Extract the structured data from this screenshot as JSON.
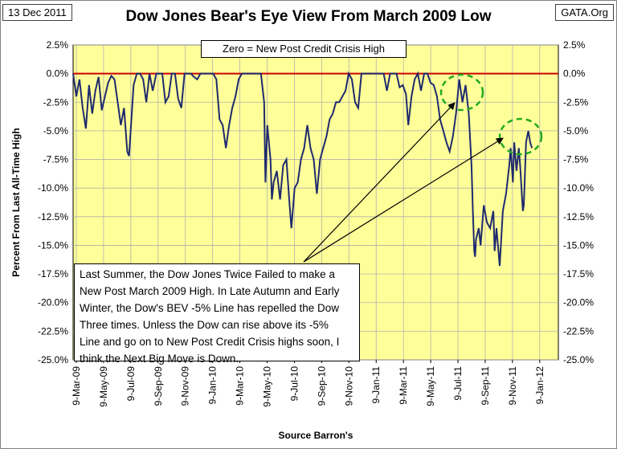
{
  "header": {
    "date": "13 Dec 2011",
    "source_badge": "GATA.Org",
    "title": "Dow Jones Bear's Eye View From March 2009 Low"
  },
  "chart_data": {
    "type": "line",
    "title": "Dow Jones Bear's Eye View From March 2009 Low",
    "xlabel": "Source Barron's",
    "ylabel": "Percent From Last All-Time High",
    "ylim": [
      -25.0,
      2.5
    ],
    "y_ticks": [
      "2.5%",
      "0.0%",
      "-2.5%",
      "-5.0%",
      "-7.5%",
      "-10.0%",
      "-12.5%",
      "-15.0%",
      "-17.5%",
      "-20.0%",
      "-22.5%",
      "-25.0%"
    ],
    "x_tick_labels": [
      "9-Mar-09",
      "9-May-09",
      "9-Jul-09",
      "9-Sep-09",
      "9-Nov-09",
      "9-Jan-10",
      "9-Mar-10",
      "9-May-10",
      "9-Jul-10",
      "9-Sep-10",
      "9-Nov-10",
      "9-Jan-11",
      "9-Mar-11",
      "9-May-11",
      "9-Jul-11",
      "9-Sep-11",
      "9-Nov-11",
      "9-Jan-12"
    ],
    "series": [
      {
        "color": "#1f2a6e",
        "points": [
          [
            "2009-03-09",
            0.0
          ],
          [
            "2009-03-16",
            -2.0
          ],
          [
            "2009-03-23",
            -0.5
          ],
          [
            "2009-03-30",
            -3.0
          ],
          [
            "2009-04-06",
            -4.8
          ],
          [
            "2009-04-13",
            -1.0
          ],
          [
            "2009-04-20",
            -3.5
          ],
          [
            "2009-04-27",
            -1.5
          ],
          [
            "2009-05-04",
            -0.3
          ],
          [
            "2009-05-11",
            -3.2
          ],
          [
            "2009-05-18",
            -2.0
          ],
          [
            "2009-05-25",
            -0.8
          ],
          [
            "2009-06-01",
            -0.2
          ],
          [
            "2009-06-08",
            -0.5
          ],
          [
            "2009-06-15",
            -2.5
          ],
          [
            "2009-06-22",
            -4.5
          ],
          [
            "2009-06-29",
            -3.0
          ],
          [
            "2009-07-06",
            -6.8
          ],
          [
            "2009-07-10",
            -7.2
          ],
          [
            "2009-07-20",
            -1.0
          ],
          [
            "2009-07-27",
            0.0
          ],
          [
            "2009-08-03",
            0.0
          ],
          [
            "2009-08-10",
            -0.5
          ],
          [
            "2009-08-17",
            -2.5
          ],
          [
            "2009-08-24",
            0.0
          ],
          [
            "2009-08-31",
            -1.5
          ],
          [
            "2009-09-08",
            0.0
          ],
          [
            "2009-09-14",
            0.0
          ],
          [
            "2009-09-21",
            0.0
          ],
          [
            "2009-09-28",
            -2.5
          ],
          [
            "2009-10-05",
            -2.0
          ],
          [
            "2009-10-12",
            0.0
          ],
          [
            "2009-10-19",
            0.0
          ],
          [
            "2009-10-26",
            -2.2
          ],
          [
            "2009-11-02",
            -3.0
          ],
          [
            "2009-11-09",
            0.0
          ],
          [
            "2009-11-16",
            0.0
          ],
          [
            "2009-11-23",
            0.0
          ],
          [
            "2009-11-30",
            -0.3
          ],
          [
            "2009-12-07",
            -0.5
          ],
          [
            "2009-12-14",
            0.0
          ],
          [
            "2009-12-21",
            0.0
          ],
          [
            "2009-12-28",
            0.0
          ],
          [
            "2010-01-04",
            0.0
          ],
          [
            "2010-01-11",
            0.0
          ],
          [
            "2010-01-18",
            -0.5
          ],
          [
            "2010-01-25",
            -4.0
          ],
          [
            "2010-02-01",
            -4.5
          ],
          [
            "2010-02-08",
            -6.5
          ],
          [
            "2010-02-15",
            -4.5
          ],
          [
            "2010-02-22",
            -3.0
          ],
          [
            "2010-03-01",
            -2.0
          ],
          [
            "2010-03-08",
            -0.5
          ],
          [
            "2010-03-15",
            0.0
          ],
          [
            "2010-03-22",
            0.0
          ],
          [
            "2010-03-29",
            0.0
          ],
          [
            "2010-04-05",
            0.0
          ],
          [
            "2010-04-12",
            0.0
          ],
          [
            "2010-04-19",
            0.0
          ],
          [
            "2010-04-26",
            0.0
          ],
          [
            "2010-05-03",
            -2.5
          ],
          [
            "2010-05-06",
            -9.5
          ],
          [
            "2010-05-10",
            -4.5
          ],
          [
            "2010-05-17",
            -7.5
          ],
          [
            "2010-05-20",
            -11.0
          ],
          [
            "2010-05-24",
            -9.5
          ],
          [
            "2010-05-31",
            -8.5
          ],
          [
            "2010-06-07",
            -11.0
          ],
          [
            "2010-06-14",
            -8.0
          ],
          [
            "2010-06-21",
            -7.5
          ],
          [
            "2010-06-28",
            -11.5
          ],
          [
            "2010-07-02",
            -13.5
          ],
          [
            "2010-07-09",
            -10.0
          ],
          [
            "2010-07-16",
            -9.5
          ],
          [
            "2010-07-23",
            -7.5
          ],
          [
            "2010-07-30",
            -6.5
          ],
          [
            "2010-08-06",
            -4.5
          ],
          [
            "2010-08-13",
            -6.5
          ],
          [
            "2010-08-20",
            -7.5
          ],
          [
            "2010-08-27",
            -10.5
          ],
          [
            "2010-09-03",
            -7.5
          ],
          [
            "2010-09-10",
            -6.5
          ],
          [
            "2010-09-17",
            -5.5
          ],
          [
            "2010-09-24",
            -4.0
          ],
          [
            "2010-10-01",
            -3.5
          ],
          [
            "2010-10-08",
            -2.5
          ],
          [
            "2010-10-15",
            -2.5
          ],
          [
            "2010-10-22",
            -2.0
          ],
          [
            "2010-10-29",
            -1.5
          ],
          [
            "2010-11-05",
            0.0
          ],
          [
            "2010-11-12",
            -0.5
          ],
          [
            "2010-11-19",
            -2.5
          ],
          [
            "2010-11-26",
            -3.0
          ],
          [
            "2010-12-03",
            0.0
          ],
          [
            "2010-12-10",
            0.0
          ],
          [
            "2010-12-17",
            0.0
          ],
          [
            "2010-12-24",
            0.0
          ],
          [
            "2010-12-31",
            0.0
          ],
          [
            "2011-01-07",
            0.0
          ],
          [
            "2011-01-14",
            0.0
          ],
          [
            "2011-01-21",
            0.0
          ],
          [
            "2011-01-28",
            -1.5
          ],
          [
            "2011-02-04",
            0.0
          ],
          [
            "2011-02-11",
            0.0
          ],
          [
            "2011-02-18",
            0.0
          ],
          [
            "2011-02-25",
            -1.2
          ],
          [
            "2011-03-04",
            -1.0
          ],
          [
            "2011-03-11",
            -1.8
          ],
          [
            "2011-03-16",
            -4.5
          ],
          [
            "2011-03-23",
            -2.0
          ],
          [
            "2011-03-30",
            -0.5
          ],
          [
            "2011-04-06",
            0.0
          ],
          [
            "2011-04-13",
            -1.5
          ],
          [
            "2011-04-20",
            0.0
          ],
          [
            "2011-04-27",
            0.0
          ],
          [
            "2011-05-04",
            -0.8
          ],
          [
            "2011-05-11",
            -1.0
          ],
          [
            "2011-05-18",
            -2.0
          ],
          [
            "2011-05-25",
            -4.0
          ],
          [
            "2011-06-01",
            -5.0
          ],
          [
            "2011-06-08",
            -6.0
          ],
          [
            "2011-06-15",
            -6.8
          ],
          [
            "2011-06-22",
            -5.5
          ],
          [
            "2011-06-29",
            -3.5
          ],
          [
            "2011-07-06",
            -0.5
          ],
          [
            "2011-07-13",
            -2.5
          ],
          [
            "2011-07-20",
            -1.0
          ],
          [
            "2011-07-27",
            -3.5
          ],
          [
            "2011-08-02",
            -8.0
          ],
          [
            "2011-08-05",
            -12.0
          ],
          [
            "2011-08-08",
            -15.5
          ],
          [
            "2011-08-10",
            -16.0
          ],
          [
            "2011-08-12",
            -14.5
          ],
          [
            "2011-08-18",
            -13.5
          ],
          [
            "2011-08-22",
            -15.0
          ],
          [
            "2011-08-29",
            -11.5
          ],
          [
            "2011-09-05",
            -13.0
          ],
          [
            "2011-09-12",
            -13.5
          ],
          [
            "2011-09-19",
            -12.0
          ],
          [
            "2011-09-22",
            -15.5
          ],
          [
            "2011-09-26",
            -13.5
          ],
          [
            "2011-10-03",
            -16.8
          ],
          [
            "2011-10-10",
            -12.0
          ],
          [
            "2011-10-17",
            -10.5
          ],
          [
            "2011-10-24",
            -8.0
          ],
          [
            "2011-10-27",
            -6.5
          ],
          [
            "2011-11-01",
            -9.5
          ],
          [
            "2011-11-04",
            -6.0
          ],
          [
            "2011-11-09",
            -8.5
          ],
          [
            "2011-11-14",
            -6.5
          ],
          [
            "2011-11-17",
            -8.0
          ],
          [
            "2011-11-23",
            -12.0
          ],
          [
            "2011-11-25",
            -11.5
          ],
          [
            "2011-11-30",
            -6.0
          ],
          [
            "2011-12-05",
            -5.0
          ],
          [
            "2011-12-09",
            -6.0
          ],
          [
            "2011-12-13",
            -6.5
          ]
        ]
      }
    ],
    "reference_line": {
      "value": 0.0,
      "color": "#cc0000"
    },
    "plot_background": "#ffff99",
    "grid": true
  },
  "annotations": {
    "zero_box": "Zero = New Post Credit Crisis High",
    "note_lines": [
      "Last Summer, the Dow Jones Twice Failed to make a",
      "New Post March 2009 High.  In Late Autumn and Early",
      "Winter, the Dow's BEV -5% Line has repelled the Dow",
      "Three times.   Unless the Dow can rise above its -5%",
      "Line and go on to New Post Credit Crisis highs soon, I",
      "think the Next Big Move is Down."
    ]
  }
}
